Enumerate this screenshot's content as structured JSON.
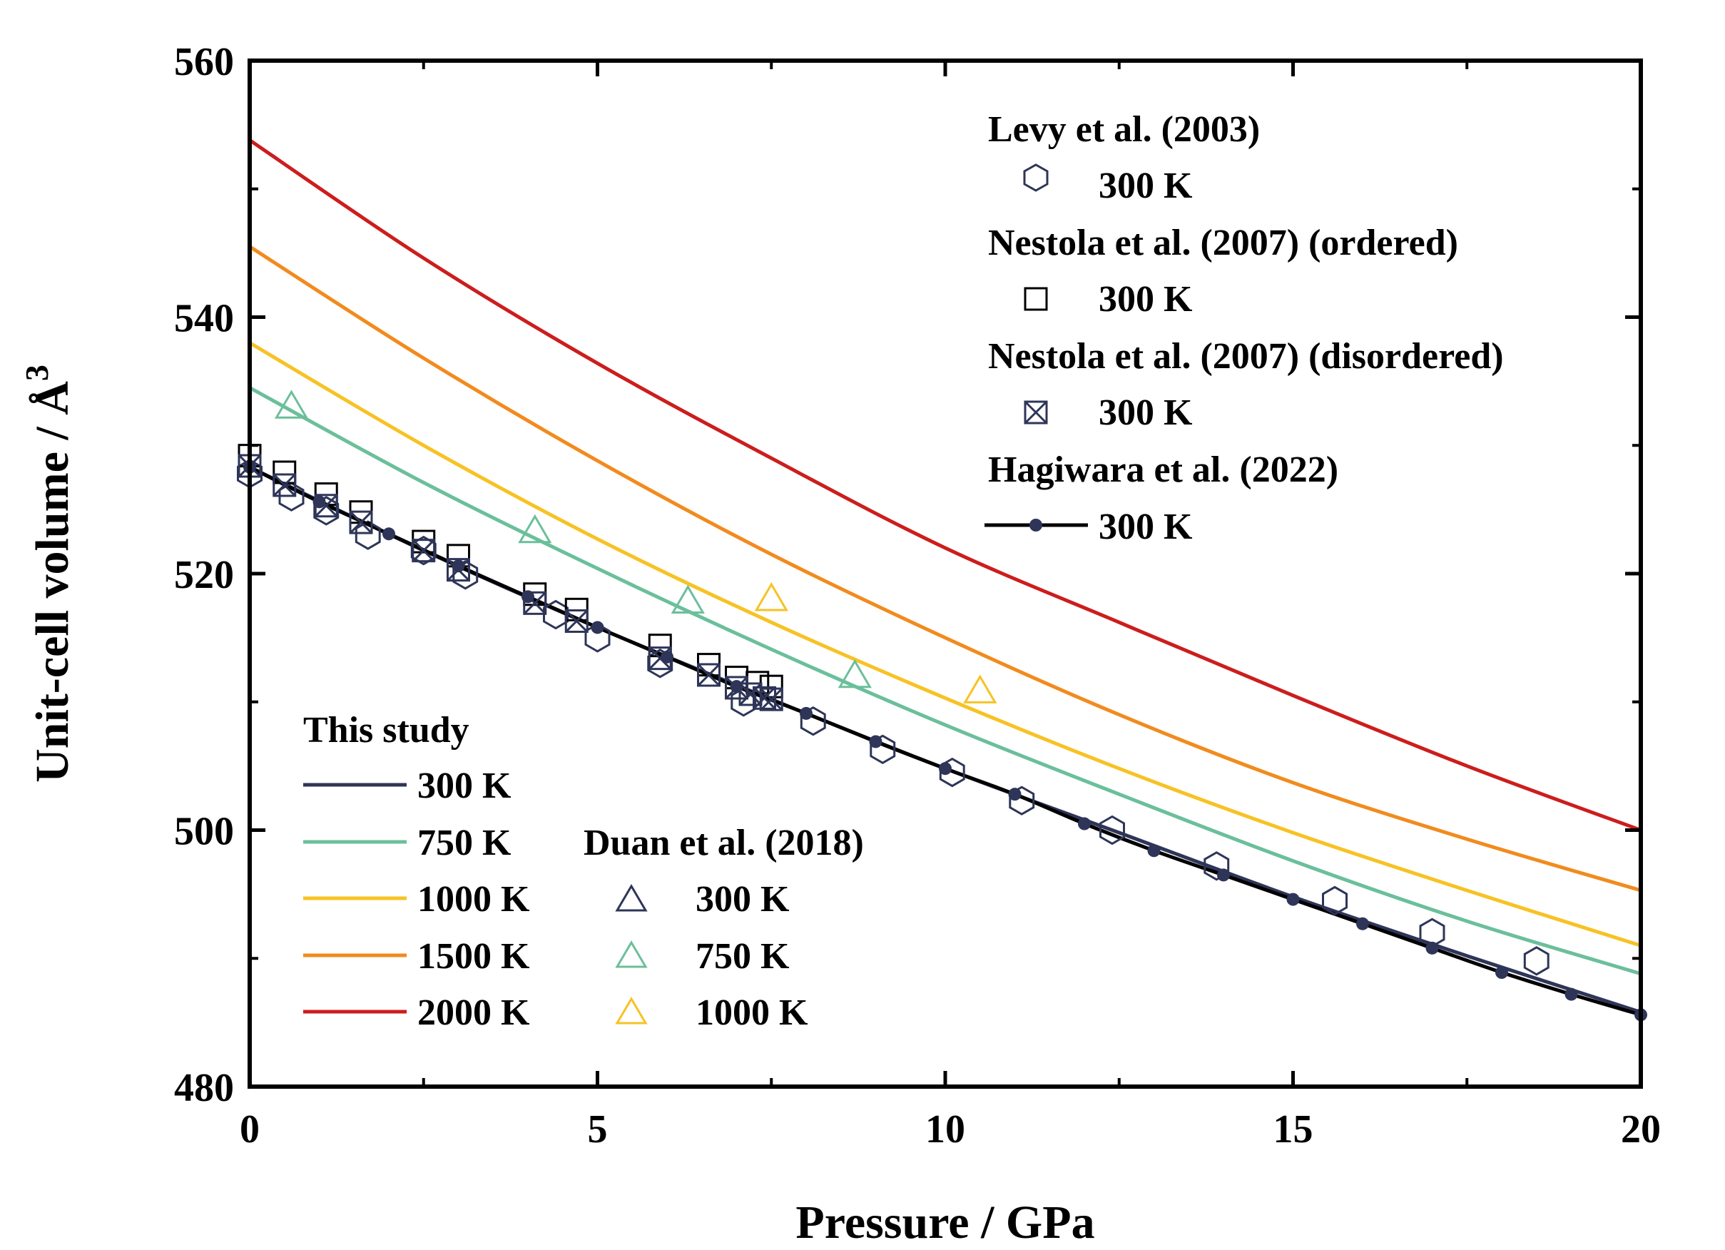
{
  "chart_data": {
    "type": "line",
    "xlabel": "Pressure / GPa",
    "ylabel": "Unit-cell volume / Å",
    "ylabel_sup": "3",
    "xlim": [
      0,
      20
    ],
    "ylim": [
      480,
      560
    ],
    "xticks": [
      "0",
      "5",
      "10",
      "15",
      "20"
    ],
    "yticks": [
      "480",
      "500",
      "520",
      "540",
      "560"
    ],
    "xtick_values": [
      0,
      5,
      10,
      15,
      20
    ],
    "ytick_values": [
      480,
      500,
      520,
      540,
      560
    ],
    "grid": false,
    "model_curves": {
      "group_title": "This study",
      "series": [
        {
          "name": "300 K",
          "color": "#2e3558",
          "x": [
            0,
            2.5,
            5,
            7.5,
            10,
            12.5,
            15,
            17.5,
            20
          ],
          "y": [
            528.3,
            521.8,
            515.8,
            510.2,
            504.8,
            499.8,
            494.8,
            490.2,
            485.8
          ]
        },
        {
          "name": "750 K",
          "color": "#6bbf9b",
          "x": [
            0,
            2.5,
            5,
            7.5,
            10,
            12.5,
            15,
            17.5,
            20
          ],
          "y": [
            534.5,
            527.1,
            520.4,
            514.1,
            508.2,
            502.8,
            497.6,
            492.9,
            488.8
          ]
        },
        {
          "name": "1000 K",
          "color": "#f7c224",
          "x": [
            0,
            2.5,
            5,
            7.5,
            10,
            12.5,
            15,
            17.5,
            20
          ],
          "y": [
            538.0,
            530.0,
            522.7,
            516.2,
            510.3,
            504.8,
            499.8,
            495.3,
            491.0
          ]
        },
        {
          "name": "1500 K",
          "color": "#f18b1e",
          "x": [
            0,
            2.5,
            5,
            7.5,
            10,
            12.5,
            15,
            17.5,
            20
          ],
          "y": [
            545.5,
            536.8,
            528.8,
            521.5,
            515.0,
            509.0,
            503.7,
            499.3,
            495.3
          ]
        },
        {
          "name": "2000 K",
          "color": "#cc1d1d",
          "x": [
            0,
            2.5,
            5,
            7.5,
            10,
            12.5,
            15,
            17.5,
            20
          ],
          "y": [
            553.8,
            544.6,
            536.4,
            529.0,
            522.0,
            516.2,
            510.5,
            505.0,
            500.0
          ]
        }
      ]
    },
    "levy_2003": {
      "name": "Levy et al. (2003)",
      "label": "300 K",
      "marker": "hexagon",
      "color": "#2e3558",
      "x": [
        0,
        0.6,
        1.1,
        1.7,
        2.5,
        3.1,
        4.4,
        5.0,
        5.9,
        7.1,
        8.1,
        9.1,
        10.1,
        11.1,
        12.4,
        13.9,
        15.6,
        17.0,
        18.5
      ],
      "y": [
        527.8,
        526.0,
        524.9,
        523.0,
        521.8,
        519.9,
        516.8,
        515.0,
        513.0,
        510.0,
        508.5,
        506.3,
        504.5,
        502.3,
        500.0,
        497.2,
        494.5,
        492.0,
        489.8
      ]
    },
    "nestola_ordered": {
      "name": "Nestola et al. (2007) (ordered)",
      "label": "300 K",
      "marker": "square",
      "color": "#000000",
      "x": [
        0,
        0.5,
        1.1,
        1.6,
        2.5,
        3.0,
        4.1,
        4.7,
        5.9,
        6.6,
        7.0,
        7.3,
        7.5
      ],
      "y": [
        529.2,
        527.9,
        526.2,
        524.8,
        522.5,
        521.4,
        518.4,
        517.2,
        514.4,
        512.9,
        511.9,
        511.5,
        511.2
      ]
    },
    "nestola_disordered": {
      "name": "Nestola et al. (2007) (disordered)",
      "label": "300 K",
      "marker": "crossed-square",
      "color": "#2e3558",
      "x": [
        0,
        0.5,
        1.1,
        1.6,
        2.5,
        3.0,
        4.1,
        4.7,
        5.9,
        6.6,
        7.0,
        7.2,
        7.4,
        7.5
      ],
      "y": [
        528.4,
        526.9,
        525.3,
        524.0,
        521.8,
        520.3,
        517.7,
        516.3,
        513.4,
        512.1,
        511.1,
        510.6,
        510.3,
        510.2
      ]
    },
    "hagiwara_2022": {
      "name": "Hagiwara et al. (2022)",
      "label": "300 K",
      "marker": "dot-line",
      "color": "#2e3558",
      "x": [
        0,
        1,
        2,
        3,
        4,
        5,
        6,
        7,
        8,
        9,
        10,
        11,
        12,
        13,
        14,
        15,
        16,
        17,
        18,
        19,
        20
      ],
      "y": [
        528.3,
        525.6,
        523.1,
        520.6,
        518.2,
        515.8,
        513.5,
        511.2,
        509.1,
        506.9,
        504.8,
        502.8,
        500.5,
        498.4,
        496.5,
        494.6,
        492.7,
        490.8,
        488.9,
        487.2,
        485.6
      ]
    },
    "duan_2018": {
      "group_title": "Duan et al. (2018)",
      "series": [
        {
          "name": "300 K",
          "color": "#2e3558",
          "x": [],
          "y": []
        },
        {
          "name": "750 K",
          "color": "#6bbf9b",
          "x": [
            0.6,
            4.1,
            6.3,
            8.7
          ],
          "y": [
            533.0,
            523.3,
            517.8,
            512.0
          ]
        },
        {
          "name": "1000 K",
          "color": "#f7c224",
          "x": [
            7.5,
            10.5
          ],
          "y": [
            518.0,
            510.8
          ]
        }
      ]
    }
  }
}
